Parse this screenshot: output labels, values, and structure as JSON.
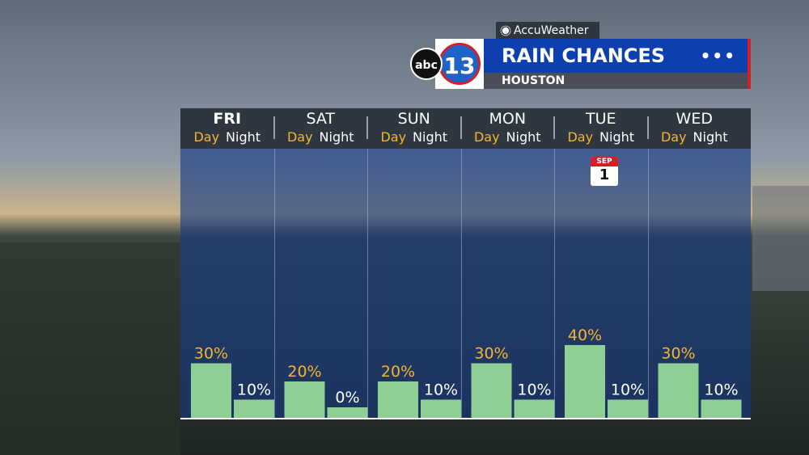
{
  "brand": {
    "accuweather": "AccuWeather",
    "abc": "abc",
    "channel": "13"
  },
  "header": {
    "title": "RAIN CHANCES",
    "location": "HOUSTON",
    "menu_icon": "more-dots-icon"
  },
  "day_label": "Day",
  "night_label": "Night",
  "calendar": {
    "month": "SEP",
    "day": "1"
  },
  "colors": {
    "bar": "#8fce95",
    "day_label": "#f5b52e",
    "night_label": "#ffffff",
    "accent_blue": "#0d3fae",
    "accent_red": "#d32027"
  },
  "chart_data": {
    "type": "bar",
    "title": "RAIN CHANCES",
    "categories": [
      "FRI",
      "SAT",
      "SUN",
      "MON",
      "TUE",
      "WED"
    ],
    "series": [
      {
        "name": "Day",
        "values": [
          30,
          20,
          20,
          30,
          40,
          30
        ]
      },
      {
        "name": "Night",
        "values": [
          10,
          0,
          10,
          10,
          10,
          10
        ]
      }
    ],
    "value_labels": {
      "Day": [
        "30%",
        "20%",
        "20%",
        "30%",
        "40%",
        "30%"
      ],
      "Night": [
        "10%",
        "0%",
        "10%",
        "10%",
        "10%",
        "10%"
      ]
    },
    "unit": "%",
    "ylim": [
      0,
      100
    ]
  }
}
